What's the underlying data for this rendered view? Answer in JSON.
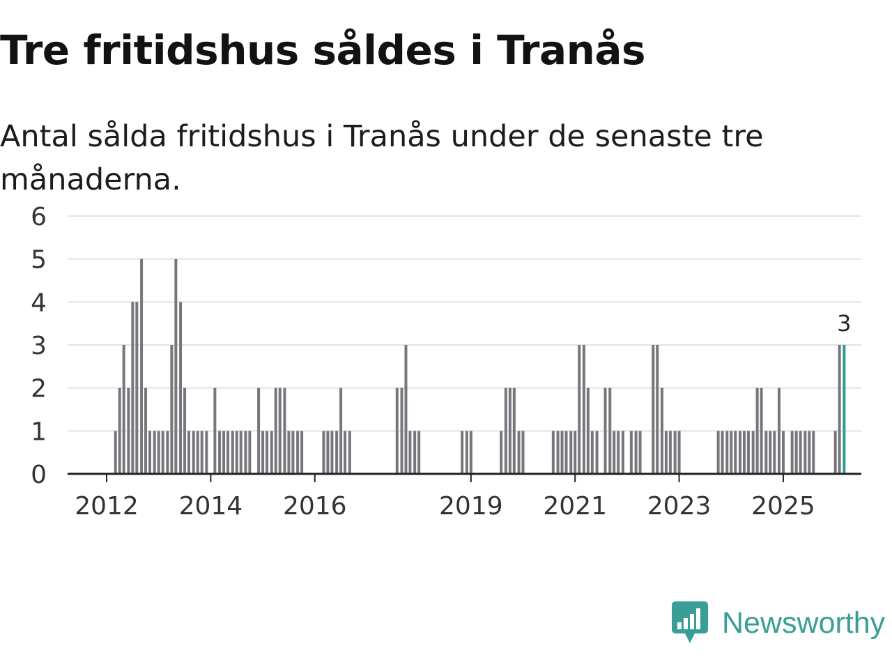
{
  "title": "Tre fritidshus såldes i Tranås",
  "subtitle": "Antal sålda fritidshus i Tranås under de senaste tre månaderna.",
  "brand": "Newsworthy",
  "colors": {
    "bar": "#77767c",
    "highlight": "#2a9d94",
    "grid": "#e2e2e2",
    "axis": "#222222",
    "brand": "#3a9e95"
  },
  "chart_data": {
    "type": "bar",
    "title": "Tre fritidshus såldes i Tranås",
    "subtitle": "Antal sålda fritidshus i Tranås under de senaste tre månaderna.",
    "xlabel": "",
    "ylabel": "",
    "ylim": [
      0,
      6
    ],
    "yticks": [
      0,
      1,
      2,
      3,
      4,
      5,
      6
    ],
    "xlim": [
      2011.25,
      2026.5
    ],
    "xticks": [
      2012,
      2014,
      2016,
      2019,
      2021,
      2023,
      2025
    ],
    "grid": true,
    "x": [
      2012.17,
      2012.25,
      2012.33,
      2012.42,
      2012.5,
      2012.58,
      2012.67,
      2012.75,
      2012.83,
      2012.92,
      2013.0,
      2013.08,
      2013.17,
      2013.25,
      2013.33,
      2013.42,
      2013.5,
      2013.58,
      2013.67,
      2013.75,
      2013.83,
      2013.92,
      2014.08,
      2014.17,
      2014.25,
      2014.33,
      2014.42,
      2014.5,
      2014.58,
      2014.67,
      2014.75,
      2014.92,
      2015.0,
      2015.08,
      2015.17,
      2015.25,
      2015.33,
      2015.42,
      2015.5,
      2015.58,
      2015.67,
      2015.75,
      2016.17,
      2016.25,
      2016.33,
      2016.42,
      2016.5,
      2016.58,
      2016.67,
      2017.58,
      2017.67,
      2017.75,
      2017.83,
      2017.92,
      2018.0,
      2018.83,
      2018.92,
      2019.0,
      2019.58,
      2019.67,
      2019.75,
      2019.83,
      2019.92,
      2020.0,
      2020.58,
      2020.67,
      2020.75,
      2020.83,
      2020.92,
      2021.0,
      2021.08,
      2021.17,
      2021.25,
      2021.33,
      2021.42,
      2021.58,
      2021.67,
      2021.75,
      2021.83,
      2021.92,
      2022.08,
      2022.17,
      2022.25,
      2022.5,
      2022.58,
      2022.67,
      2022.75,
      2022.83,
      2022.92,
      2023.0,
      2023.75,
      2023.83,
      2023.92,
      2024.0,
      2024.08,
      2024.17,
      2024.25,
      2024.33,
      2024.42,
      2024.5,
      2024.58,
      2024.67,
      2024.75,
      2024.83,
      2024.92,
      2025.0,
      2025.17,
      2025.25,
      2025.33,
      2025.42,
      2025.5,
      2025.58,
      2026.0,
      2026.08,
      2026.17
    ],
    "values": [
      1,
      2,
      3,
      2,
      4,
      4,
      5,
      2,
      1,
      1,
      1,
      1,
      1,
      3,
      5,
      4,
      2,
      1,
      1,
      1,
      1,
      1,
      2,
      1,
      1,
      1,
      1,
      1,
      1,
      1,
      1,
      2,
      1,
      1,
      1,
      2,
      2,
      2,
      1,
      1,
      1,
      1,
      1,
      1,
      1,
      1,
      2,
      1,
      1,
      2,
      2,
      3,
      1,
      1,
      1,
      1,
      1,
      1,
      1,
      2,
      2,
      2,
      1,
      1,
      1,
      1,
      1,
      1,
      1,
      1,
      3,
      3,
      2,
      1,
      1,
      2,
      2,
      1,
      1,
      1,
      1,
      1,
      1,
      3,
      3,
      2,
      1,
      1,
      1,
      1,
      1,
      1,
      1,
      1,
      1,
      1,
      1,
      1,
      1,
      2,
      2,
      1,
      1,
      1,
      2,
      1,
      1,
      1,
      1,
      1,
      1,
      1,
      1,
      3,
      3
    ],
    "highlight_index": 114,
    "annotations": [
      {
        "x": 2026.17,
        "y": 3,
        "text": "3"
      }
    ]
  }
}
